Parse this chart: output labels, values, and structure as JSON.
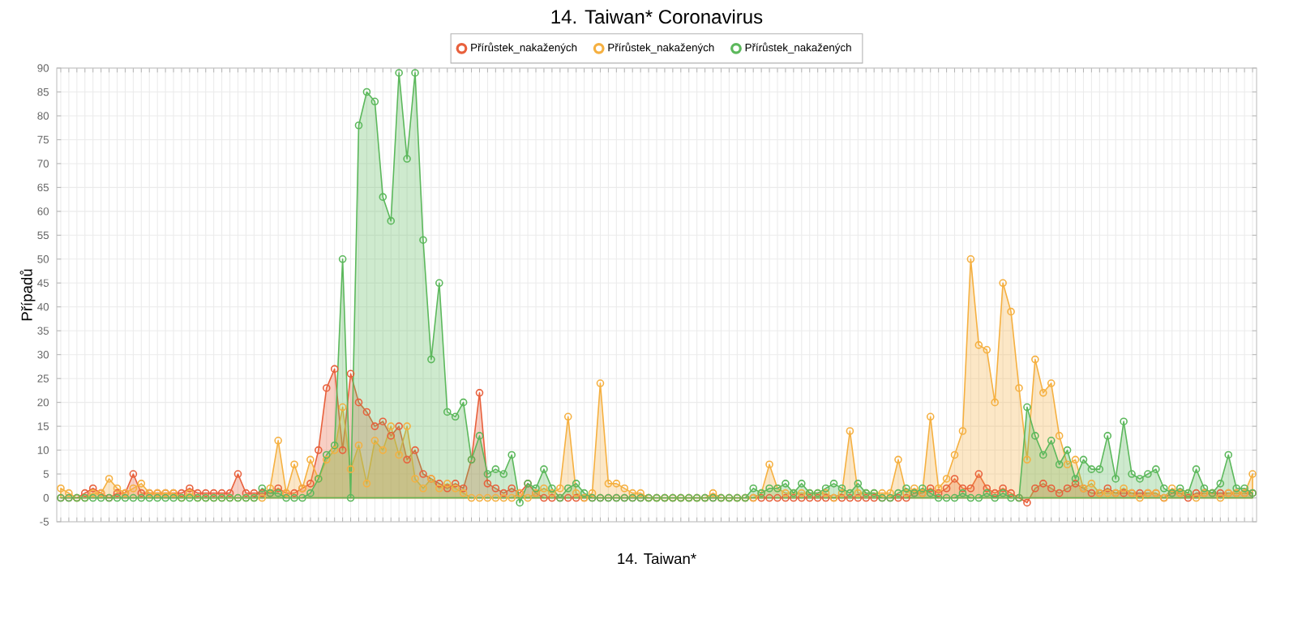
{
  "chart_data": {
    "type": "area",
    "title": "14. Taiwan* Coronavirus",
    "xlabel": "14. Taiwan*",
    "ylabel": "Případů",
    "categories": [
      null,
      null,
      null,
      null,
      null,
      null,
      null,
      null,
      null,
      null,
      null,
      null,
      null,
      null,
      null,
      null,
      null,
      null,
      null,
      null,
      null,
      null,
      null,
      null,
      null,
      null,
      null,
      null,
      null,
      null,
      null,
      null,
      null,
      null,
      null,
      null,
      null,
      null,
      null,
      null,
      null,
      null,
      null,
      null,
      null,
      null,
      null,
      null,
      null,
      null,
      null,
      null,
      null,
      null,
      null,
      null,
      null,
      null,
      null,
      null,
      null,
      null,
      null,
      null,
      null,
      null,
      null,
      null,
      null,
      null,
      null,
      null,
      null,
      null,
      null,
      null,
      null,
      null,
      null,
      null,
      null,
      null,
      null,
      null,
      null,
      null,
      null,
      null,
      null,
      null,
      null,
      null,
      null,
      null,
      null,
      null,
      null,
      null,
      null,
      null,
      null,
      null,
      null,
      null,
      null,
      null,
      null,
      null,
      null,
      null,
      null,
      null,
      null,
      null,
      null,
      null,
      null,
      null,
      null,
      null,
      null,
      null,
      null,
      null,
      null,
      null,
      null,
      null,
      null,
      null,
      null,
      null,
      null,
      null,
      null,
      null,
      null,
      null,
      null,
      null,
      null,
      null,
      null,
      null,
      null,
      null,
      null,
      null,
      null
    ],
    "series": [
      {
        "name": "Přírůstek_nakažených",
        "color": "#e8603c",
        "values": [
          0,
          0,
          0,
          1,
          2,
          1,
          0,
          1,
          1,
          5,
          1,
          1,
          1,
          1,
          1,
          1,
          2,
          1,
          1,
          1,
          1,
          1,
          5,
          1,
          1,
          1,
          1,
          2,
          1,
          1,
          2,
          3,
          10,
          23,
          27,
          10,
          26,
          20,
          18,
          15,
          16,
          13,
          15,
          8,
          10,
          5,
          4,
          3,
          2,
          3,
          2,
          8,
          22,
          3,
          2,
          1,
          2,
          1,
          3,
          1,
          0,
          0,
          0,
          0,
          0,
          0,
          0,
          0,
          0,
          0,
          0,
          0,
          0,
          0,
          0,
          0,
          0,
          0,
          0,
          0,
          0,
          0,
          0,
          0,
          0,
          0,
          0,
          0,
          0,
          0,
          0,
          0,
          0,
          0,
          0,
          0,
          0,
          0,
          0,
          0,
          0,
          0,
          0,
          0,
          0,
          0,
          1,
          1,
          2,
          1,
          2,
          4,
          2,
          2,
          5,
          2,
          1,
          2,
          1,
          0,
          -1,
          2,
          3,
          2,
          1,
          2,
          3,
          2,
          1,
          1,
          2,
          1,
          1,
          1,
          1,
          1,
          1,
          0,
          1,
          1,
          0,
          1,
          1,
          1,
          1,
          1,
          1,
          1,
          1
        ]
      },
      {
        "name": "Přírůstek_nakažených",
        "color": "#f5b041",
        "values": [
          2,
          1,
          0,
          0,
          1,
          1,
          4,
          2,
          1,
          2,
          3,
          1,
          1,
          1,
          1,
          0,
          1,
          0,
          0,
          0,
          0,
          0,
          0,
          0,
          0,
          0,
          2,
          12,
          1,
          7,
          2,
          8,
          4,
          8,
          10,
          19,
          6,
          11,
          3,
          12,
          10,
          15,
          9,
          15,
          4,
          2,
          4,
          2,
          3,
          2,
          1,
          0,
          0,
          0,
          0,
          0,
          0,
          1,
          0,
          1,
          2,
          1,
          2,
          17,
          1,
          0,
          1,
          24,
          3,
          3,
          2,
          1,
          1,
          0,
          0,
          0,
          0,
          0,
          0,
          0,
          0,
          1,
          0,
          0,
          0,
          0,
          0,
          1,
          7,
          2,
          1,
          1,
          1,
          1,
          1,
          1,
          0,
          1,
          14,
          1,
          1,
          1,
          1,
          1,
          8,
          1,
          2,
          1,
          17,
          2,
          4,
          9,
          14,
          50,
          32,
          31,
          20,
          45,
          39,
          23,
          8,
          29,
          22,
          24,
          13,
          7,
          8,
          2,
          3,
          1,
          1,
          1,
          2,
          1,
          0,
          1,
          1,
          0,
          2,
          1,
          1,
          0,
          1,
          1,
          0,
          1,
          1,
          1,
          5
        ]
      },
      {
        "name": "Přírůstek_nakažených",
        "color": "#5cb85c",
        "values": [
          0,
          0,
          0,
          0,
          0,
          0,
          0,
          0,
          0,
          0,
          0,
          0,
          0,
          0,
          0,
          0,
          0,
          0,
          0,
          0,
          0,
          0,
          0,
          0,
          0,
          2,
          1,
          1,
          0,
          0,
          0,
          1,
          4,
          9,
          11,
          50,
          0,
          78,
          85,
          83,
          63,
          58,
          89,
          71,
          89,
          54,
          29,
          45,
          18,
          17,
          20,
          8,
          13,
          5,
          6,
          5,
          9,
          -1,
          3,
          2,
          6,
          2,
          0,
          2,
          3,
          1,
          0,
          0,
          0,
          0,
          0,
          0,
          0,
          0,
          0,
          0,
          0,
          0,
          0,
          0,
          0,
          0,
          0,
          0,
          0,
          0,
          2,
          1,
          2,
          2,
          3,
          1,
          3,
          1,
          1,
          2,
          3,
          2,
          1,
          3,
          1,
          1,
          0,
          0,
          1,
          2,
          1,
          2,
          1,
          0,
          0,
          0,
          1,
          0,
          0,
          1,
          0,
          1,
          0,
          0,
          19,
          13,
          9,
          12,
          7,
          10,
          4,
          8,
          6,
          6,
          13,
          4,
          16,
          5,
          4,
          5,
          6,
          2,
          1,
          2,
          1,
          6,
          2,
          1,
          3,
          9,
          2,
          2,
          1
        ]
      }
    ],
    "ylim": [
      -5,
      90
    ],
    "yticks": [
      -5,
      0,
      5,
      10,
      15,
      20,
      25,
      30,
      35,
      40,
      45,
      50,
      55,
      60,
      65,
      70,
      75,
      80,
      85,
      90
    ],
    "grid": true,
    "legend": "top",
    "marker": "circle",
    "tick_labels": "y"
  }
}
